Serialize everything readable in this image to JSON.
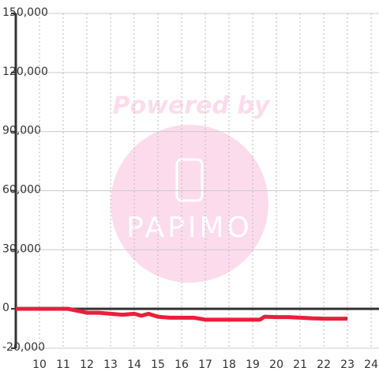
{
  "chart_data": {
    "type": "line",
    "x": [
      9,
      10,
      11,
      11.2,
      11.6,
      12,
      12.5,
      13,
      13.5,
      14,
      14.3,
      14.6,
      15,
      15.5,
      16,
      16.5,
      17,
      17.5,
      18,
      18.5,
      19,
      19.3,
      19.5,
      20,
      20.5,
      21,
      21.5,
      22,
      22.5,
      23
    ],
    "series": [
      {
        "color": "#e8203a",
        "values": [
          0,
          0,
          0,
          0,
          -1000,
          -2000,
          -2000,
          -2500,
          -3000,
          -2500,
          -3500,
          -2500,
          -4000,
          -4500,
          -4500,
          -4500,
          -5500,
          -5500,
          -5500,
          -5500,
          -5500,
          -5500,
          -4000,
          -4200,
          -4200,
          -4500,
          -4800,
          -5000,
          -5000,
          -5000
        ]
      }
    ],
    "xlim": [
      9,
      24.33
    ],
    "ylim": [
      -20000,
      150000
    ],
    "xticks": [
      10,
      11,
      12,
      13,
      14,
      15,
      16,
      17,
      18,
      19,
      20,
      21,
      22,
      23,
      24
    ],
    "yticks": [
      {
        "value": -20000,
        "label": "-20,000"
      },
      0,
      {
        "value": 30000,
        "label": "30,000"
      },
      {
        "value": 60000,
        "label": "60,000"
      },
      {
        "value": 90000,
        "label": "90,000"
      },
      {
        "value": 120000,
        "label": "120,000"
      },
      {
        "value": 150000,
        "label": "150,000"
      }
    ],
    "grid": true
  },
  "watermark": {
    "text": "Powered by",
    "logo": "PAPIMO"
  }
}
